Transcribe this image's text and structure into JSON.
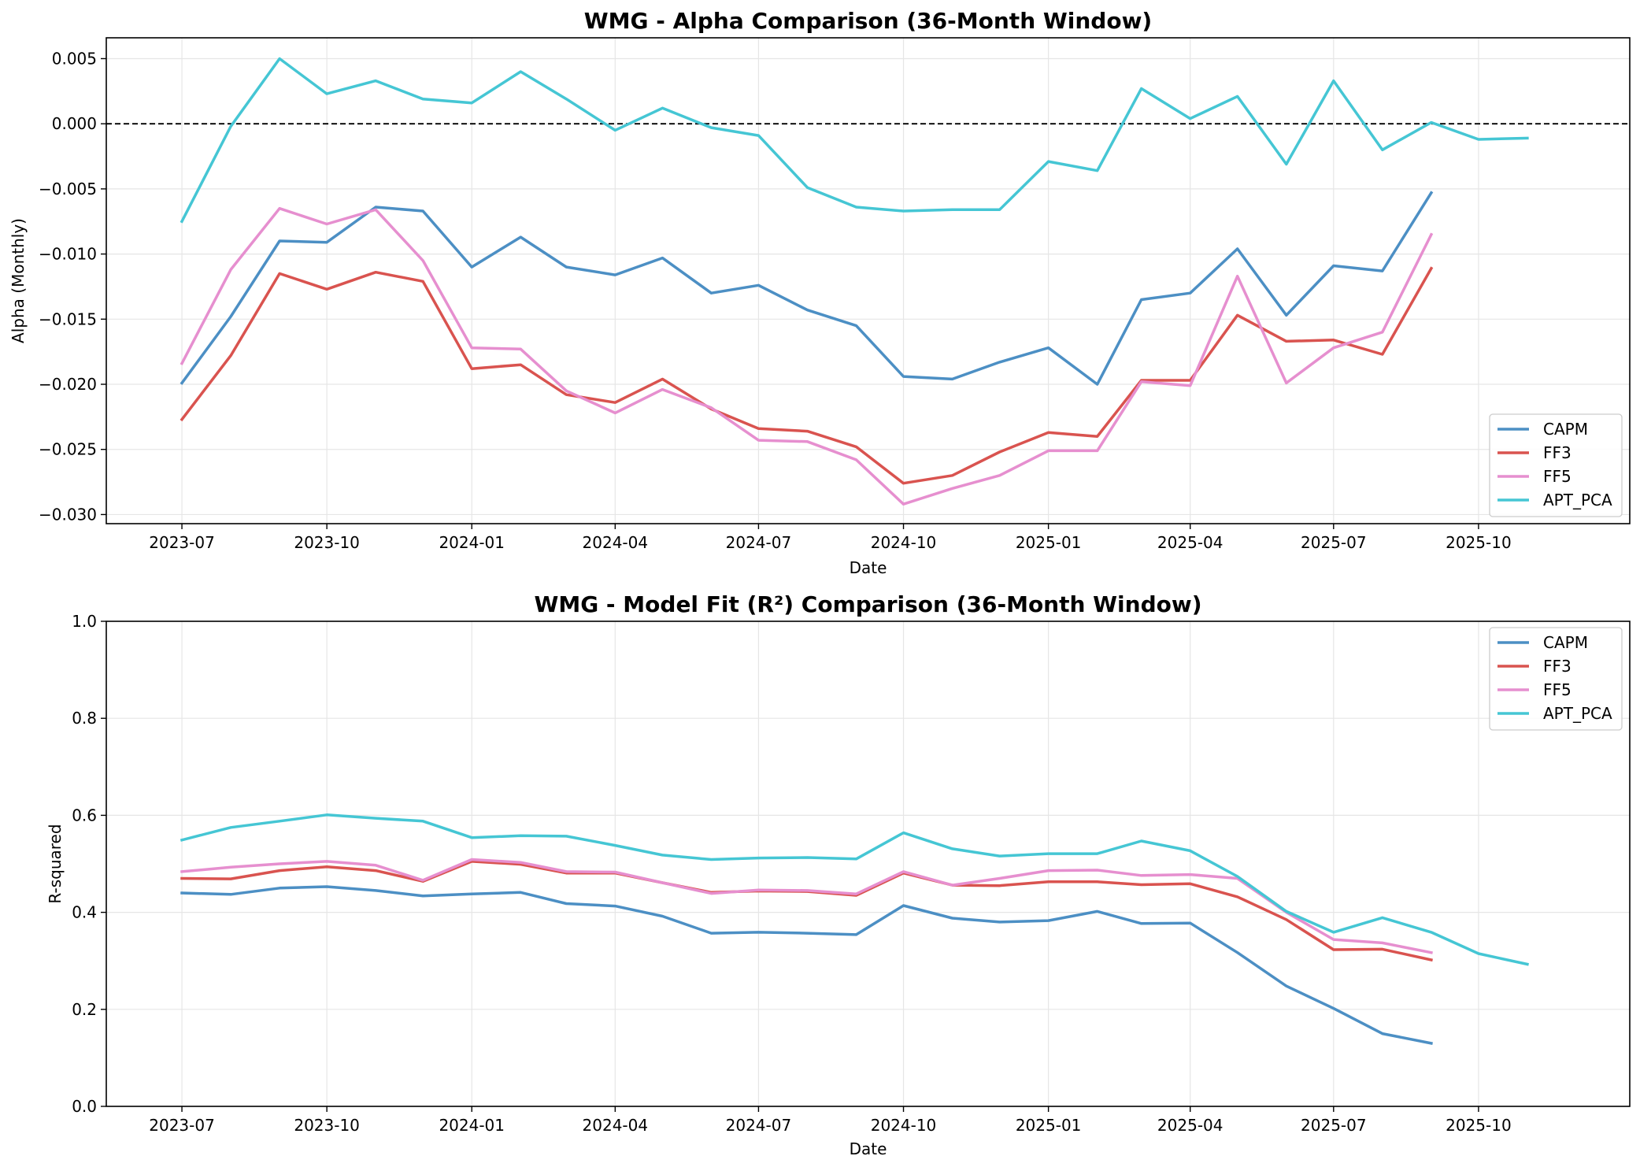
{
  "chart_data": [
    {
      "type": "line",
      "title": "WMG - Alpha Comparison (36-Month Window)",
      "xlabel": "Date",
      "ylabel": "Alpha (Monthly)",
      "x_tick_labels": [
        "2023-07",
        "2023-10",
        "2024-01",
        "2024-04",
        "2024-07",
        "2024-10",
        "2025-01",
        "2025-04",
        "2025-07",
        "2025-10"
      ],
      "y_tick_labels": [
        "−0.030",
        "−0.025",
        "−0.020",
        "−0.015",
        "−0.010",
        "−0.005",
        "0.000",
        "0.005"
      ],
      "y_ticks": [
        -0.03,
        -0.025,
        -0.02,
        -0.015,
        -0.01,
        -0.005,
        0.0,
        0.005
      ],
      "xlim": [
        "2023-05-14",
        "2026-01-05"
      ],
      "ylim": [
        -0.0307,
        0.0066
      ],
      "grid": true,
      "reference_line": {
        "y": 0.0,
        "style": "dashed"
      },
      "legend_position": "lower right",
      "series": [
        {
          "name": "CAPM",
          "color": "#4c8fc4",
          "x": [
            "2023-07",
            "2023-08",
            "2023-09",
            "2023-10",
            "2023-11",
            "2023-12",
            "2024-01",
            "2024-02",
            "2024-03",
            "2024-04",
            "2024-05",
            "2024-06",
            "2024-07",
            "2024-08",
            "2024-09",
            "2024-10",
            "2024-11",
            "2024-12",
            "2025-01",
            "2025-02",
            "2025-03",
            "2025-04",
            "2025-05",
            "2025-06",
            "2025-07",
            "2025-08",
            "2025-09"
          ],
          "values": [
            -0.0199,
            -0.0148,
            -0.009,
            -0.0091,
            -0.0064,
            -0.0067,
            -0.011,
            -0.0087,
            -0.011,
            -0.0116,
            -0.0103,
            -0.013,
            -0.0124,
            -0.0143,
            -0.0155,
            -0.0194,
            -0.0196,
            -0.0183,
            -0.0172,
            -0.02,
            -0.0135,
            -0.013,
            -0.0096,
            -0.0147,
            -0.0109,
            -0.0113,
            -0.0053
          ]
        },
        {
          "name": "FF3",
          "color": "#d9534f",
          "x": [
            "2023-07",
            "2023-08",
            "2023-09",
            "2023-10",
            "2023-11",
            "2023-12",
            "2024-01",
            "2024-02",
            "2024-03",
            "2024-04",
            "2024-05",
            "2024-06",
            "2024-07",
            "2024-08",
            "2024-09",
            "2024-10",
            "2024-11",
            "2024-12",
            "2025-01",
            "2025-02",
            "2025-03",
            "2025-04",
            "2025-05",
            "2025-06",
            "2025-07",
            "2025-08",
            "2025-09"
          ],
          "values": [
            -0.0227,
            -0.0178,
            -0.0115,
            -0.0127,
            -0.0114,
            -0.0121,
            -0.0188,
            -0.0185,
            -0.0208,
            -0.0214,
            -0.0196,
            -0.0219,
            -0.0234,
            -0.0236,
            -0.0248,
            -0.0276,
            -0.027,
            -0.0252,
            -0.0237,
            -0.024,
            -0.0197,
            -0.0197,
            -0.0147,
            -0.0167,
            -0.0166,
            -0.0177,
            -0.0111
          ]
        },
        {
          "name": "FF5",
          "color": "#e68fcf",
          "x": [
            "2023-07",
            "2023-08",
            "2023-09",
            "2023-10",
            "2023-11",
            "2023-12",
            "2024-01",
            "2024-02",
            "2024-03",
            "2024-04",
            "2024-05",
            "2024-06",
            "2024-07",
            "2024-08",
            "2024-09",
            "2024-10",
            "2024-11",
            "2024-12",
            "2025-01",
            "2025-02",
            "2025-03",
            "2025-04",
            "2025-05",
            "2025-06",
            "2025-07",
            "2025-08",
            "2025-09"
          ],
          "values": [
            -0.0184,
            -0.0112,
            -0.0065,
            -0.0077,
            -0.0066,
            -0.0105,
            -0.0172,
            -0.0173,
            -0.0205,
            -0.0222,
            -0.0204,
            -0.0218,
            -0.0243,
            -0.0244,
            -0.0258,
            -0.0292,
            -0.028,
            -0.027,
            -0.0251,
            -0.0251,
            -0.0198,
            -0.0201,
            -0.0117,
            -0.0199,
            -0.0172,
            -0.016,
            -0.0085
          ]
        },
        {
          "name": "APT_PCA",
          "color": "#45c6d4",
          "x": [
            "2023-07",
            "2023-08",
            "2023-09",
            "2023-10",
            "2023-11",
            "2023-12",
            "2024-01",
            "2024-02",
            "2024-03",
            "2024-04",
            "2024-05",
            "2024-06",
            "2024-07",
            "2024-08",
            "2024-09",
            "2024-10",
            "2024-11",
            "2024-12",
            "2025-01",
            "2025-02",
            "2025-03",
            "2025-04",
            "2025-05",
            "2025-06",
            "2025-07",
            "2025-08",
            "2025-09",
            "2025-10",
            "2025-11"
          ],
          "values": [
            -0.0075,
            -0.0002,
            0.005,
            0.0023,
            0.0033,
            0.0019,
            0.0016,
            0.004,
            0.0019,
            -0.0005,
            0.0012,
            -0.0003,
            -0.0009,
            -0.0049,
            -0.0064,
            -0.0067,
            -0.0066,
            -0.0066,
            -0.0029,
            -0.0036,
            0.0027,
            0.0004,
            0.0021,
            -0.0031,
            0.0033,
            -0.002,
            0.0001,
            -0.0012,
            -0.0011
          ]
        }
      ]
    },
    {
      "type": "line",
      "title": "WMG - Model Fit (R²) Comparison (36-Month Window)",
      "xlabel": "Date",
      "ylabel": "R-squared",
      "x_tick_labels": [
        "2023-07",
        "2023-10",
        "2024-01",
        "2024-04",
        "2024-07",
        "2024-10",
        "2025-01",
        "2025-04",
        "2025-07",
        "2025-10"
      ],
      "y_tick_labels": [
        "0.0",
        "0.2",
        "0.4",
        "0.6",
        "0.8",
        "1.0"
      ],
      "y_ticks": [
        0.0,
        0.2,
        0.4,
        0.6,
        0.8,
        1.0
      ],
      "xlim": [
        "2023-05-14",
        "2026-01-05"
      ],
      "ylim": [
        0.0,
        1.0
      ],
      "grid": true,
      "legend_position": "upper right",
      "series": [
        {
          "name": "CAPM",
          "color": "#4c8fc4",
          "x": [
            "2023-07",
            "2023-08",
            "2023-09",
            "2023-10",
            "2023-11",
            "2023-12",
            "2024-01",
            "2024-02",
            "2024-03",
            "2024-04",
            "2024-05",
            "2024-06",
            "2024-07",
            "2024-08",
            "2024-09",
            "2024-10",
            "2024-11",
            "2024-12",
            "2025-01",
            "2025-02",
            "2025-03",
            "2025-04",
            "2025-05",
            "2025-06",
            "2025-07",
            "2025-08",
            "2025-09"
          ],
          "values": [
            0.44,
            0.437,
            0.45,
            0.453,
            0.445,
            0.434,
            0.438,
            0.441,
            0.418,
            0.413,
            0.392,
            0.357,
            0.359,
            0.357,
            0.354,
            0.414,
            0.388,
            0.38,
            0.383,
            0.402,
            0.377,
            0.378,
            0.317,
            0.248,
            0.202,
            0.15,
            0.13
          ]
        },
        {
          "name": "FF3",
          "color": "#d9534f",
          "x": [
            "2023-07",
            "2023-08",
            "2023-09",
            "2023-10",
            "2023-11",
            "2023-12",
            "2024-01",
            "2024-02",
            "2024-03",
            "2024-04",
            "2024-05",
            "2024-06",
            "2024-07",
            "2024-08",
            "2024-09",
            "2024-10",
            "2024-11",
            "2024-12",
            "2025-01",
            "2025-02",
            "2025-03",
            "2025-04",
            "2025-05",
            "2025-06",
            "2025-07",
            "2025-08",
            "2025-09"
          ],
          "values": [
            0.47,
            0.469,
            0.486,
            0.494,
            0.486,
            0.464,
            0.505,
            0.499,
            0.481,
            0.481,
            0.461,
            0.441,
            0.444,
            0.443,
            0.435,
            0.481,
            0.456,
            0.455,
            0.463,
            0.463,
            0.457,
            0.459,
            0.432,
            0.385,
            0.323,
            0.324,
            0.302
          ]
        },
        {
          "name": "FF5",
          "color": "#e68fcf",
          "x": [
            "2023-07",
            "2023-08",
            "2023-09",
            "2023-10",
            "2023-11",
            "2023-12",
            "2024-01",
            "2024-02",
            "2024-03",
            "2024-04",
            "2024-05",
            "2024-06",
            "2024-07",
            "2024-08",
            "2024-09",
            "2024-10",
            "2024-11",
            "2024-12",
            "2025-01",
            "2025-02",
            "2025-03",
            "2025-04",
            "2025-05",
            "2025-06",
            "2025-07",
            "2025-08",
            "2025-09"
          ],
          "values": [
            0.484,
            0.493,
            0.5,
            0.505,
            0.497,
            0.466,
            0.509,
            0.503,
            0.484,
            0.483,
            0.461,
            0.439,
            0.446,
            0.445,
            0.438,
            0.484,
            0.456,
            0.47,
            0.486,
            0.487,
            0.476,
            0.478,
            0.47,
            0.4,
            0.344,
            0.337,
            0.317
          ]
        },
        {
          "name": "APT_PCA",
          "color": "#45c6d4",
          "x": [
            "2023-07",
            "2023-08",
            "2023-09",
            "2023-10",
            "2023-11",
            "2023-12",
            "2024-01",
            "2024-02",
            "2024-03",
            "2024-04",
            "2024-05",
            "2024-06",
            "2024-07",
            "2024-08",
            "2024-09",
            "2024-10",
            "2024-11",
            "2024-12",
            "2025-01",
            "2025-02",
            "2025-03",
            "2025-04",
            "2025-05",
            "2025-06",
            "2025-07",
            "2025-08",
            "2025-09",
            "2025-10",
            "2025-11"
          ],
          "values": [
            0.549,
            0.575,
            0.588,
            0.601,
            0.594,
            0.588,
            0.554,
            0.558,
            0.557,
            0.538,
            0.518,
            0.509,
            0.512,
            0.513,
            0.51,
            0.564,
            0.531,
            0.516,
            0.521,
            0.521,
            0.547,
            0.527,
            0.474,
            0.402,
            0.359,
            0.389,
            0.359,
            0.315,
            0.293
          ]
        }
      ]
    }
  ]
}
